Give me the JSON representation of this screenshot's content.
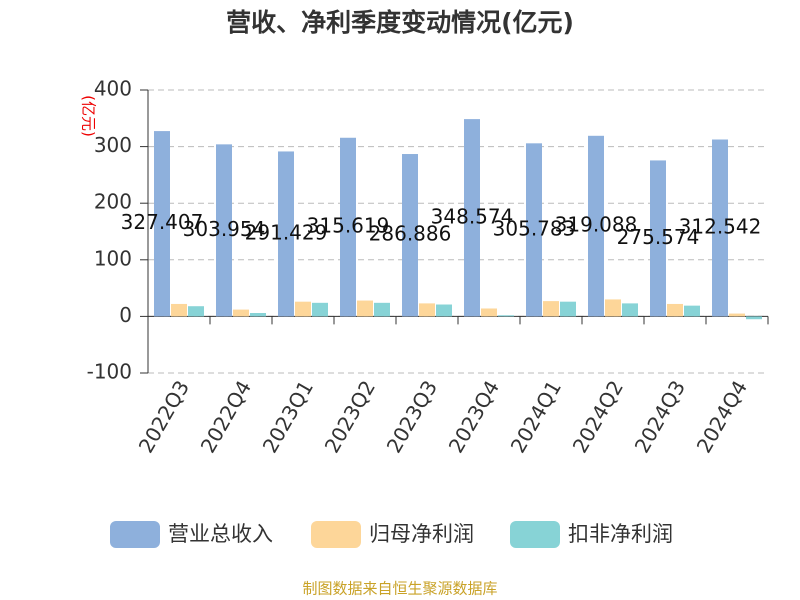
{
  "chart_data": {
    "type": "bar",
    "title": "营收、净利季度变动情况(亿元)",
    "y_axis_label": "(亿元)",
    "source": "制图数据来自恒生聚源数据库",
    "categories": [
      "2022Q3",
      "2022Q4",
      "2023Q1",
      "2023Q2",
      "2023Q3",
      "2023Q4",
      "2024Q1",
      "2024Q2",
      "2024Q3",
      "2024Q4"
    ],
    "series": [
      {
        "name": "营业总收入",
        "color": "#8eb0dc",
        "values": [
          327.407,
          303.954,
          291.429,
          315.619,
          286.886,
          348.574,
          305.783,
          319.088,
          275.574,
          312.542
        ],
        "show_labels": true
      },
      {
        "name": "归母净利润",
        "color": "#fdd699",
        "values": [
          22,
          12,
          26,
          28,
          23,
          14,
          27,
          30,
          22,
          5
        ]
      },
      {
        "name": "扣非净利润",
        "color": "#87d3d6",
        "values": [
          18,
          6,
          24,
          24,
          21,
          2,
          26,
          23,
          19,
          -5
        ]
      }
    ],
    "ylim": [
      -100,
      400
    ],
    "yticks": [
      -100,
      0,
      100,
      200,
      300,
      400
    ],
    "grid": true,
    "legend": "bottom"
  }
}
